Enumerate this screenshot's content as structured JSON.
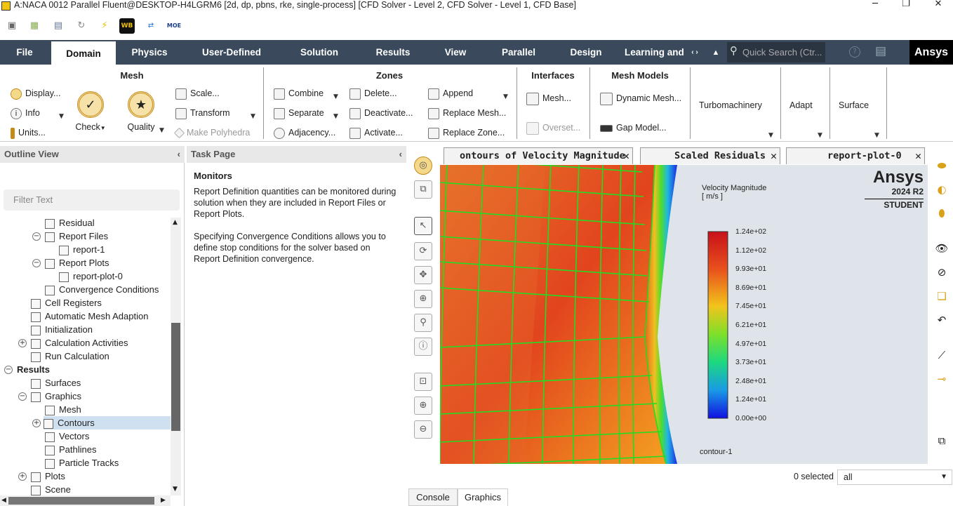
{
  "window": {
    "title": "A:NACA 0012 Parallel Fluent@DESKTOP-H4LGRM6  [2d, dp, pbns, rke, single-process] [CFD Solver - Level 2, CFD Solver - Level 1, CFD Base]",
    "minimize": "─",
    "maximize": "❐",
    "close": "✕"
  },
  "quick_access": {
    "wb_label": "WB",
    "moe_label": "MOE"
  },
  "menu": {
    "tabs": [
      "File",
      "Domain",
      "Physics",
      "User-Defined",
      "Solution",
      "Results",
      "View",
      "Parallel",
      "Design",
      "Learning and"
    ],
    "active": "Domain",
    "search_placeholder": "Quick Search (Ctr...",
    "logo": "Ansys"
  },
  "ribbon": {
    "mesh": {
      "title": "Mesh",
      "display": "Display...",
      "info": "Info",
      "units": "Units...",
      "check": "Check",
      "quality": "Quality",
      "scale": "Scale...",
      "transform": "Transform",
      "make_polyhedra": "Make Polyhedra"
    },
    "zones": {
      "title": "Zones",
      "combine": "Combine",
      "separate": "Separate",
      "adjacency": "Adjacency...",
      "delete": "Delete...",
      "deactivate": "Deactivate...",
      "activate": "Activate...",
      "append": "Append",
      "replace_mesh": "Replace Mesh...",
      "replace_zone": "Replace Zone..."
    },
    "interfaces": {
      "title": "Interfaces",
      "mesh": "Mesh...",
      "overset": "Overset..."
    },
    "mesh_models": {
      "title": "Mesh Models",
      "dynamic_mesh": "Dynamic Mesh...",
      "gap_model": "Gap Model..."
    },
    "turbomachinery": "Turbomachinery",
    "adapt": "Adapt",
    "surface": "Surface"
  },
  "outline": {
    "title": "Outline View",
    "filter_placeholder": "Filter Text",
    "items": [
      {
        "label": "Residual",
        "level": 3
      },
      {
        "label": "Report Files",
        "level": 2,
        "expander": "−"
      },
      {
        "label": "report-1",
        "level": 4
      },
      {
        "label": "Report Plots",
        "level": 2,
        "expander": "−"
      },
      {
        "label": "report-plot-0",
        "level": 4
      },
      {
        "label": "Convergence Conditions",
        "level": 3
      },
      {
        "label": "Cell Registers",
        "level": 2
      },
      {
        "label": "Automatic Mesh Adaption",
        "level": 2
      },
      {
        "label": "Initialization",
        "level": 2
      },
      {
        "label": "Calculation Activities",
        "level": 1,
        "expander": "+"
      },
      {
        "label": "Run Calculation",
        "level": 2
      },
      {
        "label": "Results",
        "level": 0,
        "expander": "−",
        "bold": true
      },
      {
        "label": "Surfaces",
        "level": 2
      },
      {
        "label": "Graphics",
        "level": 1,
        "expander": "−"
      },
      {
        "label": "Mesh",
        "level": 3
      },
      {
        "label": "Contours",
        "level": 2,
        "expander": "+",
        "selected": true
      },
      {
        "label": "Vectors",
        "level": 3
      },
      {
        "label": "Pathlines",
        "level": 3
      },
      {
        "label": "Particle Tracks",
        "level": 3
      },
      {
        "label": "Plots",
        "level": 1,
        "expander": "+"
      },
      {
        "label": "Scene",
        "level": 2
      }
    ]
  },
  "task_page": {
    "title": "Task Page",
    "heading": "Monitors",
    "para1": "Report Definition quantities can be monitored during solution when they are included in Report Files or Report Plots.",
    "para2": "Specifying Convergence Conditions allows you to define stop conditions for the solver based on Report Definition convergence."
  },
  "graphics_tabs": [
    {
      "label": "ontours of Velocity Magnitude [m/s",
      "close": "✕"
    },
    {
      "label": "Scaled Residuals",
      "close": "✕"
    },
    {
      "label": "report-plot-0",
      "close": "✕"
    }
  ],
  "viewport": {
    "legend_title_line1": "Velocity Magnitude",
    "legend_title_line2": "[ m/s ]",
    "legend_ticks": [
      "1.24e+02",
      "1.12e+02",
      "9.93e+01",
      "8.69e+01",
      "7.45e+01",
      "6.21e+01",
      "4.97e+01",
      "3.73e+01",
      "2.48e+01",
      "1.24e+01",
      "0.00e+00"
    ],
    "contour_name": "contour-1",
    "brand": "Ansys",
    "version": "2024 R2",
    "edition": "STUDENT",
    "colors": {
      "high": "#d7191c",
      "mid": "#1cd81c",
      "low": "#1010e0",
      "mesh": "#22dd22",
      "background": "#dfe4ea"
    }
  },
  "bottom": {
    "selected_count": "0 selected",
    "filter_value": "all",
    "console_tab": "Console",
    "graphics_tab": "Graphics"
  }
}
